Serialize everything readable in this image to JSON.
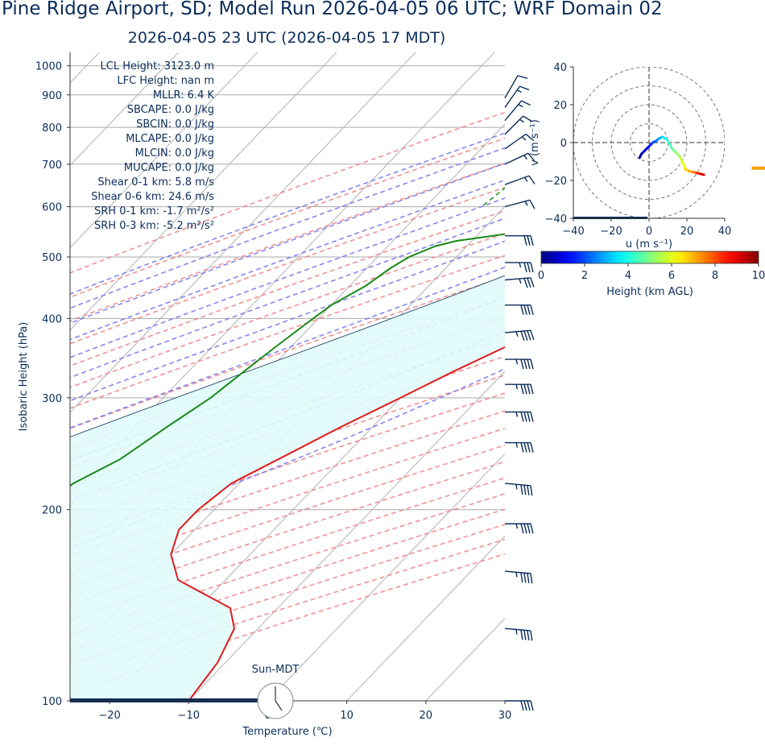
{
  "header": {
    "title": "Pine Ridge Airport, SD; Model Run 2026-04-05 06 UTC; WRF Domain 02",
    "subtitle": "2026-04-05 23 UTC  (2026-04-05 17 MDT)"
  },
  "colors": {
    "text": "#0b2d5a",
    "temperature": "#e41a1c",
    "dewpoint": "#1a8a1a",
    "parcel": "#0b2d5a",
    "cape_fill": "#e0fbfb",
    "dry_adiabat": "#f08080",
    "moist_adiabat": "#7a7af0",
    "mixing_ratio": "#2e9a2e",
    "isotherm": "#aaaaaa",
    "lcl_marker": "#f5a000",
    "barb": "#0b2d5a"
  },
  "indices": [
    "LCL Height: 3123.0 m",
    "LFC Height: nan m",
    "MLLR: 6.4 K",
    "SBCAPE: 0.0 J/kg",
    "SBCIN: 0.0 J/kg",
    "MLCAPE: 0.0 J/kg",
    "MLCIN: 0.0 J/kg",
    "MUCAPE: 0.0 J/kg",
    "Shear 0-1 km: 5.8 m/s",
    "Shear 0-6 km: 24.6 m/s",
    "SRH 0-1 km: -1.7 m²/s²",
    "SRH 0-3 km: -5.2 m²/s²"
  ],
  "sun_label": "Sun-MDT",
  "chart_data": [
    {
      "type": "line",
      "subtype": "skew-t log-p",
      "xlabel": "Temperature (℃)",
      "ylabel": "Isobaric Height (hPa)",
      "xlim": [
        -25,
        30
      ],
      "ylim": [
        1050,
        100
      ],
      "y_scale": "log",
      "xticks": [
        -20,
        -10,
        0,
        10,
        20,
        30
      ],
      "xtick_labels": [
        "−20",
        "−10",
        "0",
        "10",
        "20",
        "30"
      ],
      "yticks": [
        1000,
        900,
        800,
        700,
        600,
        500,
        400,
        300,
        200,
        100
      ],
      "grid": true,
      "series": [
        {
          "key": "temperature",
          "pressure": [
            905,
            870,
            830,
            790,
            750,
            720,
            690,
            660,
            630,
            600,
            570,
            545,
            520,
            480,
            450,
            420,
            390,
            360,
            330,
            300,
            270,
            240,
            220,
            200,
            186,
            170,
            155,
            140,
            130,
            115,
            100
          ],
          "values": [
            20.5,
            17.5,
            14.5,
            11.5,
            9,
            7,
            5.3,
            4.2,
            3.8,
            3.6,
            4,
            4,
            3,
            0,
            -3,
            -6,
            -9.5,
            -13,
            -16.5,
            -20,
            -24,
            -28,
            -31,
            -32,
            -32,
            -30,
            -26,
            -16,
            -13,
            -11,
            -10
          ]
        },
        {
          "key": "dewpoint",
          "pressure": [
            905,
            870,
            830,
            790,
            760,
            730,
            700,
            680,
            650,
            620,
            600,
            580,
            570,
            555,
            540,
            530,
            520,
            500,
            480,
            450,
            420,
            390,
            360,
            330,
            300,
            270,
            240,
            220,
            200,
            186,
            170,
            155,
            140,
            130,
            115,
            100
          ],
          "values": [
            -10,
            -8.5,
            -9,
            -8.5,
            -8,
            -7.5,
            -6.8,
            -6.2,
            -5.5,
            -6.5,
            -8,
            -12,
            -18,
            -22,
            -28,
            -32,
            -34,
            -36,
            -37,
            -38,
            -40,
            -41,
            -42,
            -43,
            -44,
            -46,
            -48,
            -51,
            -52,
            -52,
            -50,
            -48,
            -45,
            -43,
            -40,
            -34
          ]
        }
      ]
    },
    {
      "type": "line",
      "subtype": "hodograph",
      "xlabel": "u (m s⁻¹)",
      "ylabel": "v (m s⁻¹)",
      "xlim": [
        -40,
        40
      ],
      "ylim": [
        -40,
        40
      ],
      "xticks": [
        -40,
        -20,
        0,
        20,
        40
      ],
      "yticks": [
        -40,
        -20,
        0,
        20,
        40
      ],
      "rings": [
        10,
        20,
        30,
        40
      ],
      "colorbar": {
        "label": "Height (km AGL)",
        "range": [
          0,
          10
        ],
        "ticks": [
          0,
          2,
          4,
          6,
          8,
          10
        ]
      },
      "u": [
        -5,
        -4,
        -2,
        0,
        2,
        4,
        5,
        7,
        9,
        10,
        12,
        14,
        16,
        17,
        18,
        19,
        19,
        21,
        23,
        25,
        27,
        29
      ],
      "v": [
        -8,
        -6,
        -4,
        -2,
        0,
        1,
        2,
        3,
        2,
        1,
        -3,
        -5,
        -7,
        -9,
        -11,
        -13,
        -14,
        -15,
        -15.5,
        -16,
        -16.5,
        -17
      ],
      "height_km": [
        0.2,
        0.6,
        1.0,
        1.5,
        2.0,
        2.5,
        3.0,
        3.5,
        4.0,
        4.4,
        4.8,
        5.2,
        5.5,
        5.8,
        6.0,
        6.3,
        6.6,
        7.0,
        7.6,
        8.3,
        9.0,
        9.8
      ]
    }
  ]
}
